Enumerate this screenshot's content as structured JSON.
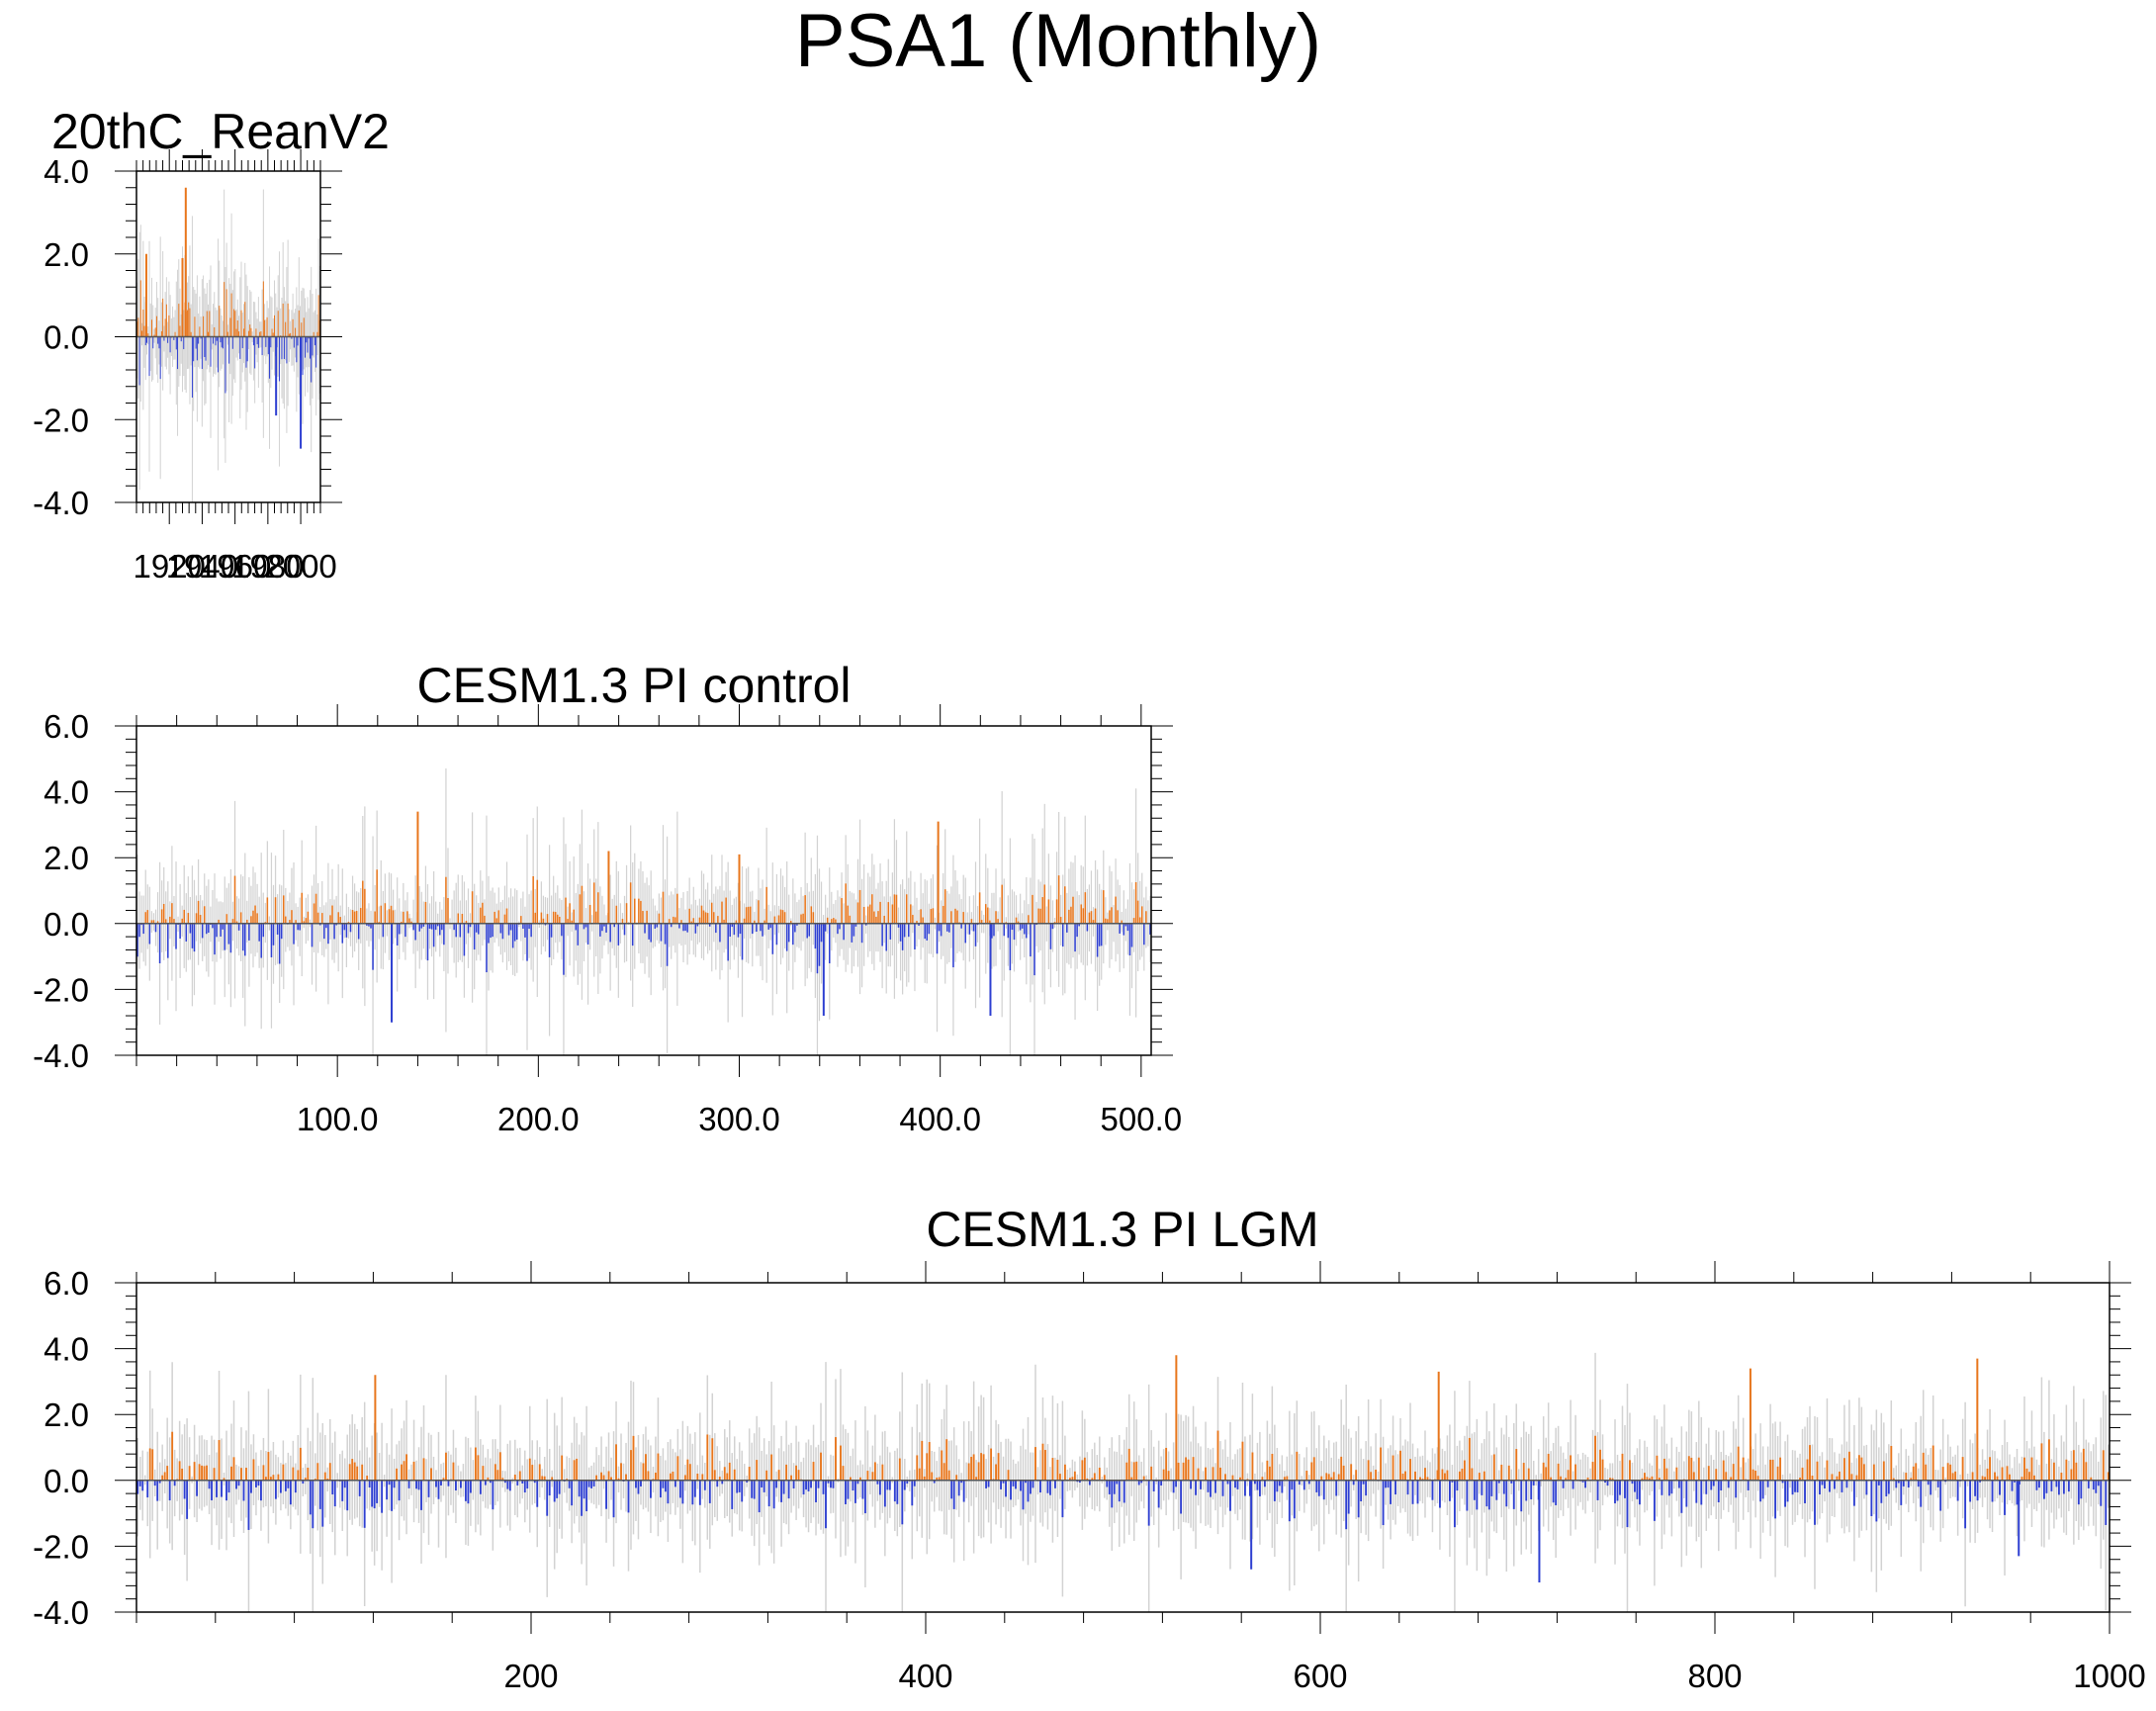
{
  "figure_title": "PSA1 (Monthly)",
  "colors": {
    "positive": "#E8761C",
    "negative": "#2E3FD1",
    "envelope": "#D2D2D2",
    "axis": "#000000"
  },
  "chart_data": [
    {
      "type": "bar",
      "title": "20thC_ReanV2",
      "series_note": "monthly PSA1 index anomalies, positive bars orange, negative bars blue, grey spread envelope",
      "ylim": [
        -4.0,
        4.0
      ],
      "yticks": [
        "4.0",
        "2.0",
        "0.0",
        "-2.0",
        "-4.0"
      ],
      "xlim": [
        1900,
        2012
      ],
      "xticks": [
        1920,
        1940,
        1960,
        1980,
        2000
      ],
      "xtick_labels": [
        "1920",
        "1940",
        "1960",
        "1980",
        "2000"
      ],
      "n_bars": 150,
      "amplitude": 1.0,
      "pos_scale": 1.2,
      "neg_scale": 1.0,
      "seed": 7,
      "peaks": [
        {
          "x": 1930,
          "value": 3.6
        },
        {
          "x": 1928,
          "value": 1.9
        },
        {
          "x": 1906,
          "value": 2.0
        },
        {
          "x": 2000,
          "value": -2.7
        },
        {
          "x": 1985,
          "value": -1.9
        }
      ]
    },
    {
      "type": "bar",
      "title": "CESM1.3 PI control",
      "series_note": "monthly PSA1 index anomalies, positive bars orange, negative bars blue, grey spread envelope",
      "ylim": [
        -4.0,
        6.0
      ],
      "yticks": [
        "6.0",
        "4.0",
        "2.0",
        "0.0",
        "-2.0",
        "-4.0"
      ],
      "xlim": [
        0,
        505
      ],
      "xticks": [
        100,
        200,
        300,
        400,
        500
      ],
      "xtick_labels": [
        "100.0",
        "200.0",
        "300.0",
        "400.0",
        "500.0"
      ],
      "n_bars": 500,
      "amplitude": 1.0,
      "pos_scale": 1.0,
      "neg_scale": 1.0,
      "seed": 21,
      "peaks": [
        {
          "x": 140,
          "value": 3.4
        },
        {
          "x": 399,
          "value": 3.1
        },
        {
          "x": 127,
          "value": -3.0
        },
        {
          "x": 342,
          "value": -2.8
        },
        {
          "x": 425,
          "value": -2.8
        },
        {
          "x": 235,
          "value": 2.2
        },
        {
          "x": 300,
          "value": 2.1
        }
      ]
    },
    {
      "type": "bar",
      "title": "CESM1.3 PI LGM",
      "series_note": "monthly PSA1 index anomalies, positive bars orange, negative bars blue, grey spread envelope",
      "ylim": [
        -4.0,
        6.0
      ],
      "yticks": [
        "6.0",
        "4.0",
        "2.0",
        "0.0",
        "-2.0",
        "-4.0"
      ],
      "xlim": [
        0,
        1000
      ],
      "xticks": [
        200,
        400,
        600,
        800,
        1000
      ],
      "xtick_labels": [
        "200",
        "400",
        "600",
        "800",
        "1000"
      ],
      "n_bars": 800,
      "amplitude": 1.0,
      "pos_scale": 1.0,
      "neg_scale": 1.0,
      "seed": 99,
      "peaks": [
        {
          "x": 527,
          "value": 3.8
        },
        {
          "x": 933,
          "value": 3.7
        },
        {
          "x": 121,
          "value": 3.2
        },
        {
          "x": 711,
          "value": -3.1
        },
        {
          "x": 565,
          "value": -2.7
        },
        {
          "x": 818,
          "value": 3.4
        },
        {
          "x": 660,
          "value": 3.3
        },
        {
          "x": 954,
          "value": -2.3
        }
      ]
    }
  ]
}
